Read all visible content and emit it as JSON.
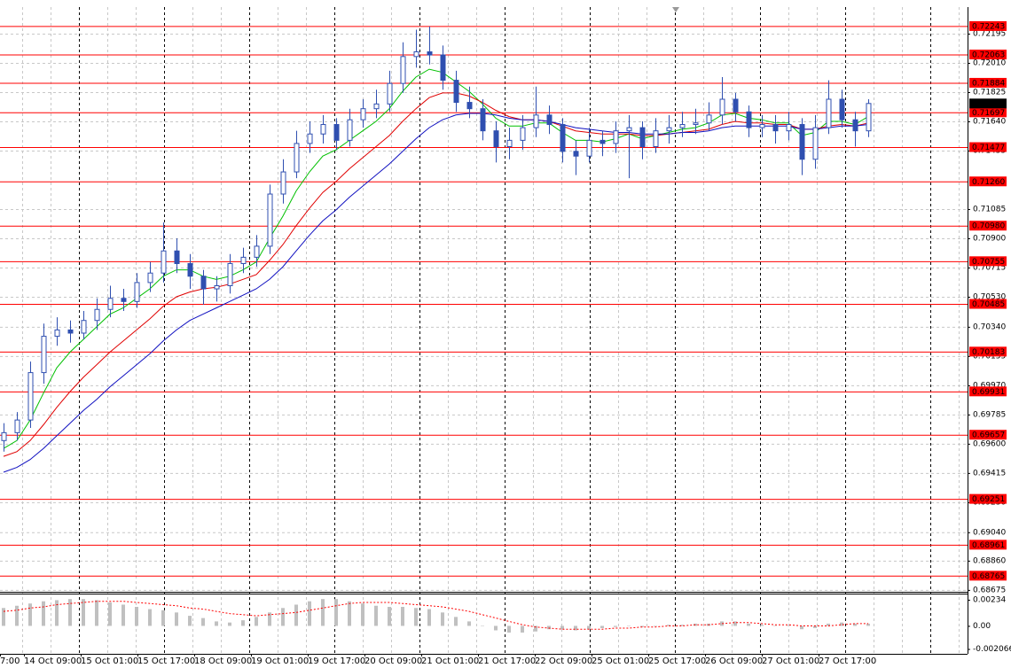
{
  "chart_data": [
    {
      "type": "candlestick",
      "color": "#2f4fb0",
      "open": [
        0.6962,
        0.6967,
        0.6975,
        0.7005,
        0.7028,
        0.7032,
        0.703,
        0.7038,
        0.7045,
        0.7052,
        0.705,
        0.7062,
        0.7068,
        0.7082,
        0.7074,
        0.7066,
        0.7058,
        0.706,
        0.7074,
        0.7078,
        0.7085,
        0.7118,
        0.7132,
        0.715,
        0.7156,
        0.7162,
        0.7152,
        0.7165,
        0.7172,
        0.7175,
        0.7188,
        0.7205,
        0.7208,
        0.7206,
        0.719,
        0.7176,
        0.7172,
        0.7158,
        0.7148,
        0.7152,
        0.716,
        0.7168,
        0.7162,
        0.7145,
        0.7142,
        0.7152,
        0.715,
        0.7158,
        0.716,
        0.7148,
        0.7158,
        0.716,
        0.7162,
        0.7163,
        0.7168,
        0.7178,
        0.717,
        0.716,
        0.7162,
        0.7158,
        0.7162,
        0.714,
        0.716,
        0.7178,
        0.7165,
        0.7158
      ],
      "high": [
        0.6973,
        0.698,
        0.7012,
        0.7036,
        0.704,
        0.7038,
        0.7044,
        0.7052,
        0.706,
        0.7058,
        0.7068,
        0.7075,
        0.71,
        0.709,
        0.708,
        0.707,
        0.7066,
        0.708,
        0.7084,
        0.7092,
        0.7124,
        0.714,
        0.7158,
        0.7164,
        0.7168,
        0.7166,
        0.7172,
        0.7178,
        0.7184,
        0.7196,
        0.7214,
        0.7222,
        0.7224,
        0.7212,
        0.7196,
        0.7186,
        0.7178,
        0.7164,
        0.716,
        0.7168,
        0.7186,
        0.7174,
        0.7166,
        0.7152,
        0.716,
        0.7158,
        0.7164,
        0.7168,
        0.7164,
        0.7166,
        0.7168,
        0.717,
        0.7172,
        0.7176,
        0.7192,
        0.7182,
        0.7174,
        0.7168,
        0.7168,
        0.717,
        0.7166,
        0.7168,
        0.719,
        0.7184,
        0.717,
        0.7178
      ],
      "low": [
        0.6955,
        0.6962,
        0.697,
        0.6998,
        0.7022,
        0.7024,
        0.7026,
        0.7032,
        0.704,
        0.7044,
        0.7046,
        0.7056,
        0.7062,
        0.7068,
        0.7058,
        0.7048,
        0.705,
        0.7055,
        0.7068,
        0.7072,
        0.708,
        0.7112,
        0.7128,
        0.7144,
        0.715,
        0.7146,
        0.7148,
        0.716,
        0.7166,
        0.717,
        0.7182,
        0.7198,
        0.72,
        0.7184,
        0.717,
        0.7166,
        0.7152,
        0.7138,
        0.714,
        0.7146,
        0.7154,
        0.7156,
        0.7138,
        0.713,
        0.7138,
        0.7142,
        0.7144,
        0.7128,
        0.714,
        0.7144,
        0.715,
        0.7154,
        0.7156,
        0.7158,
        0.7162,
        0.7164,
        0.7154,
        0.7154,
        0.715,
        0.7152,
        0.713,
        0.7134,
        0.7156,
        0.716,
        0.7148,
        0.7154
      ],
      "close": [
        0.6967,
        0.6975,
        0.7005,
        0.7028,
        0.7032,
        0.703,
        0.7038,
        0.7045,
        0.7052,
        0.705,
        0.7062,
        0.7068,
        0.7082,
        0.7074,
        0.7066,
        0.7058,
        0.706,
        0.7074,
        0.7078,
        0.7085,
        0.7118,
        0.7132,
        0.715,
        0.7156,
        0.7162,
        0.7152,
        0.7165,
        0.7172,
        0.7175,
        0.7188,
        0.7205,
        0.7208,
        0.7206,
        0.719,
        0.7176,
        0.7172,
        0.7158,
        0.7148,
        0.7152,
        0.716,
        0.7168,
        0.7162,
        0.7145,
        0.7142,
        0.7152,
        0.715,
        0.7158,
        0.716,
        0.7148,
        0.7158,
        0.716,
        0.7162,
        0.7163,
        0.7168,
        0.7178,
        0.717,
        0.716,
        0.7162,
        0.7158,
        0.7162,
        0.714,
        0.716,
        0.7178,
        0.7165,
        0.7158,
        0.71753
      ],
      "overlays": [
        {
          "color": "#00c000",
          "values": [
            0.6957,
            0.6962,
            0.6975,
            0.6992,
            0.7008,
            0.7018,
            0.7026,
            0.7034,
            0.7042,
            0.7046,
            0.7052,
            0.7058,
            0.7066,
            0.707,
            0.707,
            0.7066,
            0.7064,
            0.7066,
            0.707,
            0.7075,
            0.709,
            0.7104,
            0.712,
            0.7132,
            0.7142,
            0.7146,
            0.7152,
            0.7158,
            0.7164,
            0.7172,
            0.7183,
            0.7192,
            0.7197,
            0.7195,
            0.7189,
            0.7183,
            0.7175,
            0.7166,
            0.7161,
            0.7161,
            0.7163,
            0.7163,
            0.7157,
            0.7152,
            0.7152,
            0.7151,
            0.7153,
            0.7156,
            0.7153,
            0.7155,
            0.7157,
            0.7159,
            0.716,
            0.7163,
            0.7168,
            0.7169,
            0.7166,
            0.7165,
            0.7163,
            0.7163,
            0.7155,
            0.7157,
            0.7164,
            0.7164,
            0.7162,
            0.7167
          ]
        },
        {
          "color": "#e00000",
          "values": [
            0.6952,
            0.6955,
            0.6962,
            0.6972,
            0.6983,
            0.6993,
            0.7002,
            0.701,
            0.7018,
            0.7025,
            0.7032,
            0.7039,
            0.7047,
            0.7053,
            0.7056,
            0.7058,
            0.7059,
            0.7061,
            0.7064,
            0.7067,
            0.7076,
            0.7086,
            0.7098,
            0.7109,
            0.7119,
            0.7126,
            0.7134,
            0.7141,
            0.7148,
            0.7155,
            0.7164,
            0.7172,
            0.7179,
            0.7182,
            0.7182,
            0.718,
            0.7176,
            0.7171,
            0.7167,
            0.7165,
            0.7165,
            0.7164,
            0.7161,
            0.7158,
            0.7157,
            0.7156,
            0.7156,
            0.7156,
            0.7155,
            0.7155,
            0.7156,
            0.7157,
            0.7158,
            0.7159,
            0.7162,
            0.7164,
            0.7163,
            0.7163,
            0.7162,
            0.7162,
            0.7159,
            0.7159,
            0.7161,
            0.7162,
            0.7161,
            0.7163
          ]
        },
        {
          "color": "#1010c0",
          "values": [
            0.6942,
            0.6945,
            0.695,
            0.6957,
            0.6965,
            0.6973,
            0.6981,
            0.6988,
            0.6996,
            0.7003,
            0.701,
            0.7017,
            0.7025,
            0.7032,
            0.7038,
            0.7042,
            0.7046,
            0.705,
            0.7054,
            0.7058,
            0.7064,
            0.7072,
            0.7082,
            0.7092,
            0.7101,
            0.7108,
            0.7116,
            0.7123,
            0.713,
            0.7137,
            0.7145,
            0.7153,
            0.716,
            0.7165,
            0.7168,
            0.7169,
            0.7169,
            0.7168,
            0.7166,
            0.7165,
            0.7165,
            0.7164,
            0.7162,
            0.716,
            0.7159,
            0.7158,
            0.7157,
            0.7157,
            0.7156,
            0.7156,
            0.7156,
            0.7157,
            0.7157,
            0.7158,
            0.716,
            0.7161,
            0.7161,
            0.7161,
            0.7161,
            0.7161,
            0.7159,
            0.7159,
            0.716,
            0.7161,
            0.7161,
            0.7162
          ]
        }
      ],
      "ylim": [
        0.68663,
        0.72363
      ],
      "yticks": [
        0.72195,
        {
          "value": 0.7201,
          "label": "0.72010"
        },
        0.71825,
        {
          "value": 0.7164,
          "label": "0.71640"
        },
        0.71455,
        0.71085,
        {
          "value": 0.709,
          "label": "0.70900"
        },
        0.70715,
        {
          "value": 0.7053,
          "label": "0.70530"
        },
        {
          "value": 0.7034,
          "label": "0.70340"
        },
        0.70155,
        {
          "value": 0.6997,
          "label": "0.69970"
        },
        0.69785,
        {
          "value": 0.696,
          "label": "0.69600"
        },
        0.69415,
        {
          "value": 0.6923,
          "label": "0.69230"
        },
        {
          "value": 0.6904,
          "label": "0.69040"
        },
        {
          "value": 0.6886,
          "label": "0.68860"
        },
        0.68675
      ],
      "grid": true,
      "level_color": "#ff0000",
      "levels": [
        0.72243,
        0.72063,
        0.71884,
        0.71697,
        0.71477,
        {
          "value": 0.7126,
          "label": "0.71260"
        },
        {
          "value": 0.7098,
          "label": "0.70980"
        },
        0.70755,
        0.70485,
        0.70183,
        0.69931,
        0.69657,
        0.69251,
        0.68961,
        0.68765
      ],
      "last_price": 0.71753,
      "x_labels": [
        "7:00",
        "14 Oct 09:00",
        "15 Oct 01:00",
        "15 Oct 17:00",
        "18 Oct 09:00",
        "19 Oct 01:00",
        "19 Oct 17:00",
        "20 Oct 09:00",
        "21 Oct 01:00",
        "21 Oct 17:00",
        "22 Oct 09:00",
        "25 Oct 01:00",
        "25 Oct 17:00",
        "26 Oct 09:00",
        "27 Oct 01:00",
        "27 Oct 17:00"
      ]
    },
    {
      "type": "oscillator",
      "color": "#c0c0c0",
      "values": [
        0.0016,
        0.0018,
        0.002,
        0.0022,
        0.0023,
        0.0024,
        0.0024,
        0.0023,
        0.0021,
        0.0019,
        0.0017,
        0.0015,
        0.0014,
        0.0012,
        0.0009,
        0.0007,
        0.0004,
        0.0003,
        0.0005,
        0.0008,
        0.0012,
        0.0016,
        0.0019,
        0.0022,
        0.0024,
        0.0024,
        0.0022,
        0.002,
        0.0018,
        0.0017,
        0.0017,
        0.0016,
        0.0015,
        0.0012,
        0.0008,
        0.0004,
        0.0,
        -0.0004,
        -0.0006,
        -0.0006,
        -0.0005,
        -0.0003,
        -0.0003,
        -0.0004,
        -0.0003,
        -0.0002,
        -0.0001,
        0.0,
        -0.0001,
        0.0,
        0.0001,
        0.0001,
        0.0002,
        0.0002,
        0.0004,
        0.0004,
        0.0002,
        0.0001,
        0.0,
        0.0,
        -0.0003,
        -0.0002,
        0.0002,
        0.0003,
        0.0002,
        0.0002
      ],
      "signal": {
        "color": "#ff0000",
        "values": [
          0.0013,
          0.0014,
          0.0016,
          0.0017,
          0.0019,
          0.002,
          0.0021,
          0.0022,
          0.0022,
          0.0022,
          0.0021,
          0.002,
          0.0019,
          0.0018,
          0.0016,
          0.0015,
          0.0013,
          0.0011,
          0.001,
          0.0009,
          0.001,
          0.0011,
          0.0012,
          0.0014,
          0.0016,
          0.0018,
          0.002,
          0.0021,
          0.0021,
          0.0021,
          0.002,
          0.0019,
          0.0018,
          0.0017,
          0.0015,
          0.0013,
          0.001,
          0.0007,
          0.0004,
          0.0001,
          -0.0001,
          -0.0002,
          -0.0003,
          -0.0003,
          -0.0003,
          -0.0003,
          -0.0002,
          -0.0002,
          -0.0001,
          -0.0001,
          0.0,
          0.0,
          0.0001,
          0.0001,
          0.0002,
          0.0003,
          0.0003,
          0.0002,
          0.0001,
          0.0001,
          0.0,
          0.0,
          0.0,
          0.0001,
          0.0002,
          0.0002
        ]
      },
      "ylim": [
        -0.0025,
        0.00281
      ],
      "yticks": [
        0.00234,
        {
          "value": 0,
          "label": "0.00"
        },
        -0.002066
      ]
    }
  ]
}
